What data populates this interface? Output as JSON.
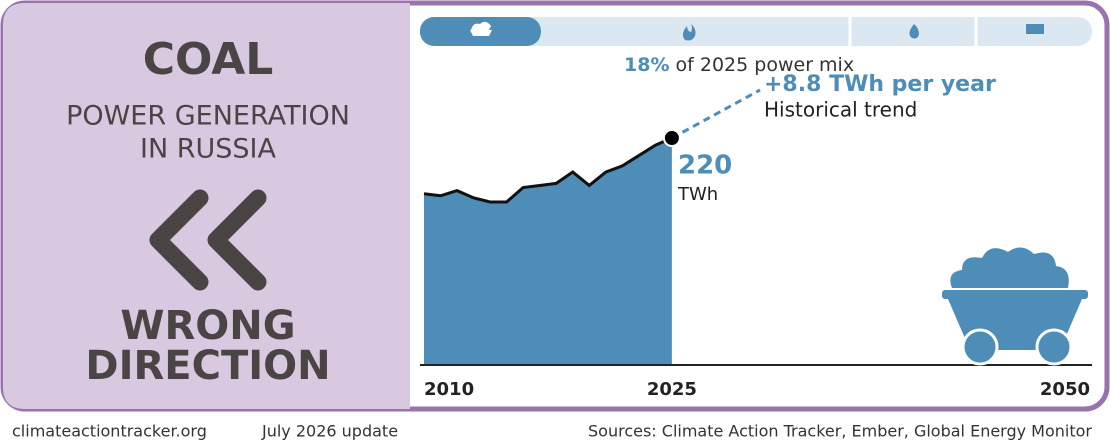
{
  "chart_data": {
    "type": "area",
    "headline": "COAL",
    "subtitle_lines": [
      "POWER GENERATION",
      "IN RUSSIA"
    ],
    "verdict_lines": [
      "WRONG",
      "DIRECTION"
    ],
    "share": {
      "value": 18,
      "label": "18%"
    },
    "share_text": "of 2025 power mix",
    "trend": "+8.8 TWh per year",
    "trend_note": "Historical trend",
    "unit": "TWh",
    "x": [
      2010,
      2011,
      2012,
      2013,
      2014,
      2015,
      2016,
      2017,
      2018,
      2019,
      2020,
      2021,
      2022,
      2023,
      2024,
      2025
    ],
    "values": [
      166,
      164,
      169,
      162,
      158,
      158,
      172,
      174,
      176,
      187,
      174,
      187,
      193,
      203,
      213,
      220
    ],
    "color": "#4d8db8",
    "xlim": [
      2010,
      2050
    ],
    "xticks": [
      2010,
      2025,
      2050
    ],
    "ylim": [
      0,
      220
    ]
  },
  "footer": {
    "site": "climateactiontracker.org",
    "date": "July 2026 update",
    "sources": "Sources: Climate Action Tracker, Ember, Global Energy Monitor"
  }
}
